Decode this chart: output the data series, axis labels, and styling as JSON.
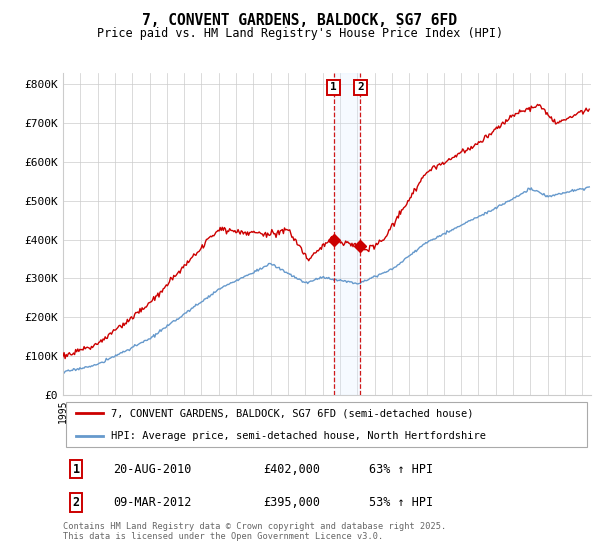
{
  "title": "7, CONVENT GARDENS, BALDOCK, SG7 6FD",
  "subtitle": "Price paid vs. HM Land Registry's House Price Index (HPI)",
  "ylabel_ticks": [
    "£0",
    "£100K",
    "£200K",
    "£300K",
    "£400K",
    "£500K",
    "£600K",
    "£700K",
    "£800K"
  ],
  "yvalues": [
    0,
    100000,
    200000,
    300000,
    400000,
    500000,
    600000,
    700000,
    800000
  ],
  "ylim": [
    0,
    830000
  ],
  "xlim_start": 1995.0,
  "xlim_end": 2025.5,
  "sale1_date": 2010.63,
  "sale1_price": 402000,
  "sale1_label": "1",
  "sale2_date": 2012.18,
  "sale2_price": 395000,
  "sale2_label": "2",
  "legend_line1": "7, CONVENT GARDENS, BALDOCK, SG7 6FD (semi-detached house)",
  "legend_line2": "HPI: Average price, semi-detached house, North Hertfordshire",
  "table_row1": [
    "1",
    "20-AUG-2010",
    "£402,000",
    "63% ↑ HPI"
  ],
  "table_row2": [
    "2",
    "09-MAR-2012",
    "£395,000",
    "53% ↑ HPI"
  ],
  "footnote": "Contains HM Land Registry data © Crown copyright and database right 2025.\nThis data is licensed under the Open Government Licence v3.0.",
  "hpi_color": "#6699cc",
  "price_color": "#cc0000",
  "shade_color": "#ddeeff",
  "grid_color": "#cccccc",
  "background_color": "#ffffff"
}
